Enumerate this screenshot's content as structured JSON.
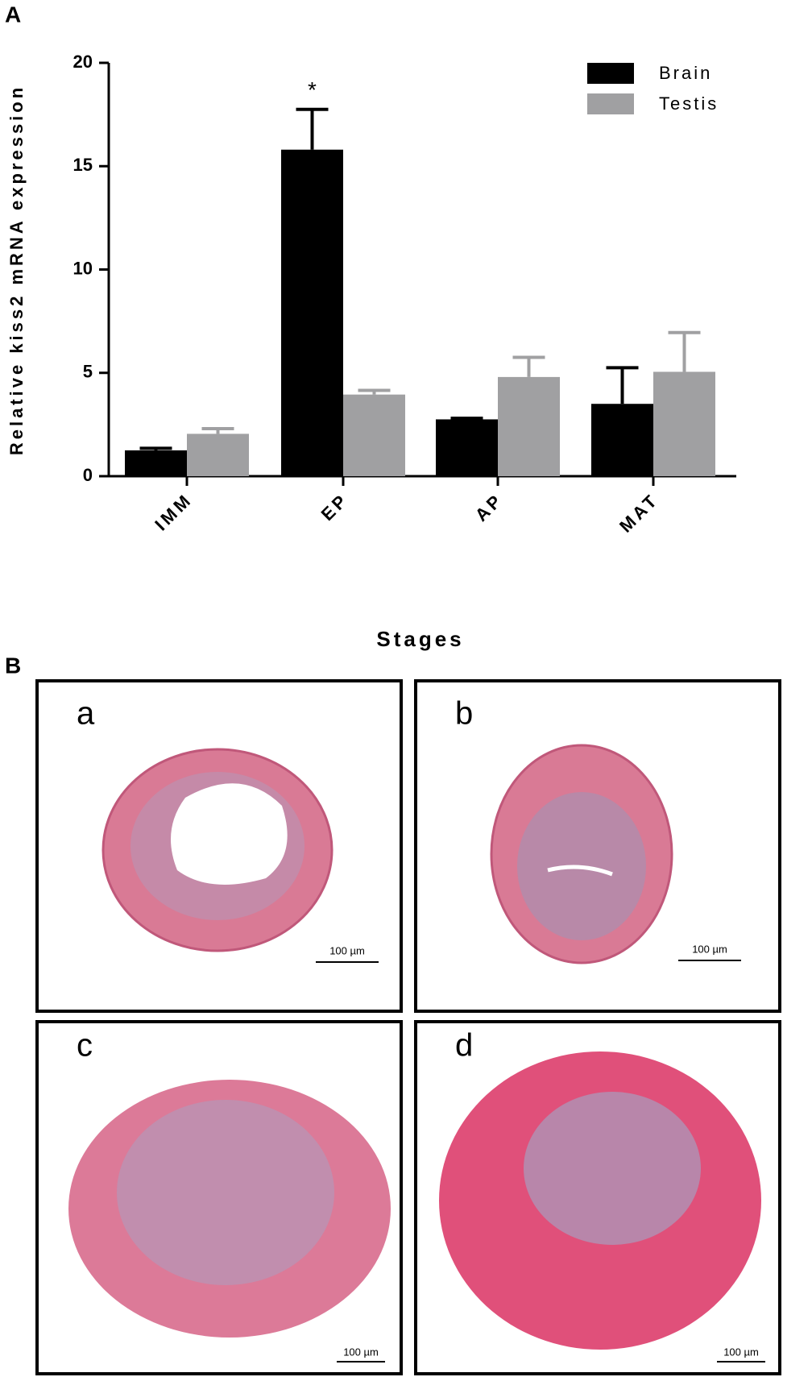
{
  "chart_data": {
    "type": "bar",
    "panel_label": "A",
    "y_label": "Relative kiss2 mRNA expression",
    "x_label": "Stages",
    "categories": [
      "IMM",
      "EP",
      "AP",
      "MAT"
    ],
    "series": [
      {
        "name": "Brain",
        "color": "#000000",
        "values": [
          1.25,
          15.8,
          2.75,
          3.5
        ],
        "errors": [
          0.1,
          1.95,
          0.05,
          1.75
        ]
      },
      {
        "name": "Testis",
        "color": "#a0a0a2",
        "values": [
          2.05,
          3.95,
          4.8,
          5.05
        ],
        "errors": [
          0.25,
          0.2,
          0.95,
          1.9
        ]
      }
    ],
    "annotations": [
      {
        "text": "*",
        "series": 0,
        "category": 1
      }
    ],
    "ylim": [
      0,
      20
    ],
    "yticks": [
      0,
      5,
      10,
      15,
      20
    ],
    "legend": "top-right"
  },
  "panel_b": {
    "panel_label": "B",
    "panels": [
      {
        "label": "a",
        "scale": "100 µm"
      },
      {
        "label": "b",
        "scale": "100 µm"
      },
      {
        "label": "c",
        "scale": "100 µm"
      },
      {
        "label": "d",
        "scale": "100 µm"
      }
    ]
  }
}
